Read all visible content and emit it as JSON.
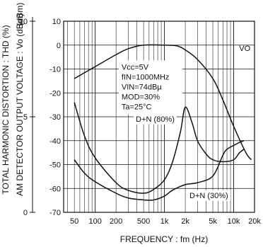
{
  "chart_data": {
    "type": "line",
    "x_scale": "log",
    "xlim": [
      35,
      20000
    ],
    "y_left_outer": {
      "label": "TOTAL HARMONIC DISTORTION : THD (%)",
      "ticks": [
        {
          "label": "10",
          "value": 10
        },
        {
          "label": "5",
          "value": 5
        },
        {
          "label": "0",
          "value": 0
        }
      ],
      "ylim": [
        0,
        10
      ]
    },
    "y_left_inner": {
      "label": "AM DETECTOR OUTPUT VOLTAGE : Vo (dBm)",
      "unit_label": "(dBm)",
      "ylim": [
        -70,
        10
      ],
      "ticks": [
        "10",
        "0",
        "-10",
        "-20",
        "-30",
        "-40",
        "-50",
        "-60",
        "-70"
      ]
    },
    "xlabel": "FREQUENCY : fm (Hz)",
    "x_ticks": [
      {
        "label": "50",
        "value": 50
      },
      {
        "label": "100",
        "value": 100
      },
      {
        "label": "200",
        "value": 200
      },
      {
        "label": "500",
        "value": 500
      },
      {
        "label": "1k",
        "value": 1000
      },
      {
        "label": "2k",
        "value": 2000
      },
      {
        "label": "5k",
        "value": 5000
      },
      {
        "label": "10k",
        "value": 10000
      },
      {
        "label": "20k",
        "value": 20000
      }
    ],
    "grid": true,
    "conditions": [
      "Vcc=5V",
      "fIN=1000MHz",
      "VIN=74dBµ",
      "MOD=30%",
      "Ta=25°C"
    ],
    "series": [
      {
        "name": "VO",
        "axis": "dBm",
        "points": [
          [
            50,
            -14
          ],
          [
            100,
            -9
          ],
          [
            200,
            -4
          ],
          [
            300,
            -1.5
          ],
          [
            500,
            0
          ],
          [
            1000,
            0
          ],
          [
            1500,
            -0.3
          ],
          [
            2000,
            -2
          ],
          [
            3000,
            -6
          ],
          [
            5000,
            -14
          ],
          [
            7000,
            -23
          ],
          [
            10000,
            -34
          ],
          [
            15000,
            -45
          ],
          [
            18000,
            -48
          ]
        ]
      },
      {
        "name": "D+N (80%)",
        "axis": "THD",
        "points": [
          [
            50,
            5.75
          ],
          [
            70,
            4.0
          ],
          [
            100,
            2.85
          ],
          [
            200,
            1.55
          ],
          [
            300,
            1.15
          ],
          [
            500,
            1.0
          ],
          [
            700,
            1.2
          ],
          [
            1000,
            1.7
          ],
          [
            1300,
            2.6
          ],
          [
            1700,
            4.2
          ],
          [
            2000,
            5.5
          ],
          [
            2500,
            4.7
          ],
          [
            3000,
            3.75
          ],
          [
            4000,
            3.05
          ],
          [
            5000,
            2.75
          ],
          [
            7000,
            2.65
          ],
          [
            10000,
            2.75
          ],
          [
            12000,
            3.1
          ],
          [
            14000,
            3.3
          ]
        ]
      },
      {
        "name": "D+N (30%)",
        "axis": "THD",
        "points": [
          [
            50,
            2.75
          ],
          [
            70,
            2.05
          ],
          [
            100,
            1.6
          ],
          [
            200,
            1.0
          ],
          [
            300,
            0.75
          ],
          [
            500,
            0.65
          ],
          [
            700,
            0.65
          ],
          [
            1000,
            0.85
          ],
          [
            1300,
            1.15
          ],
          [
            2000,
            1.45
          ],
          [
            3000,
            1.55
          ],
          [
            5000,
            1.9
          ],
          [
            7000,
            3.0
          ],
          [
            8000,
            3.3
          ],
          [
            10000,
            3.5
          ],
          [
            12000,
            3.65
          ],
          [
            14000,
            3.75
          ]
        ]
      }
    ],
    "annotations": [
      {
        "text": "VO",
        "series": "VO"
      },
      {
        "text": "D+N (80%)",
        "series": "D+N (80%)"
      },
      {
        "text": "D+N (30%)",
        "series": "D+N (30%)"
      }
    ]
  }
}
